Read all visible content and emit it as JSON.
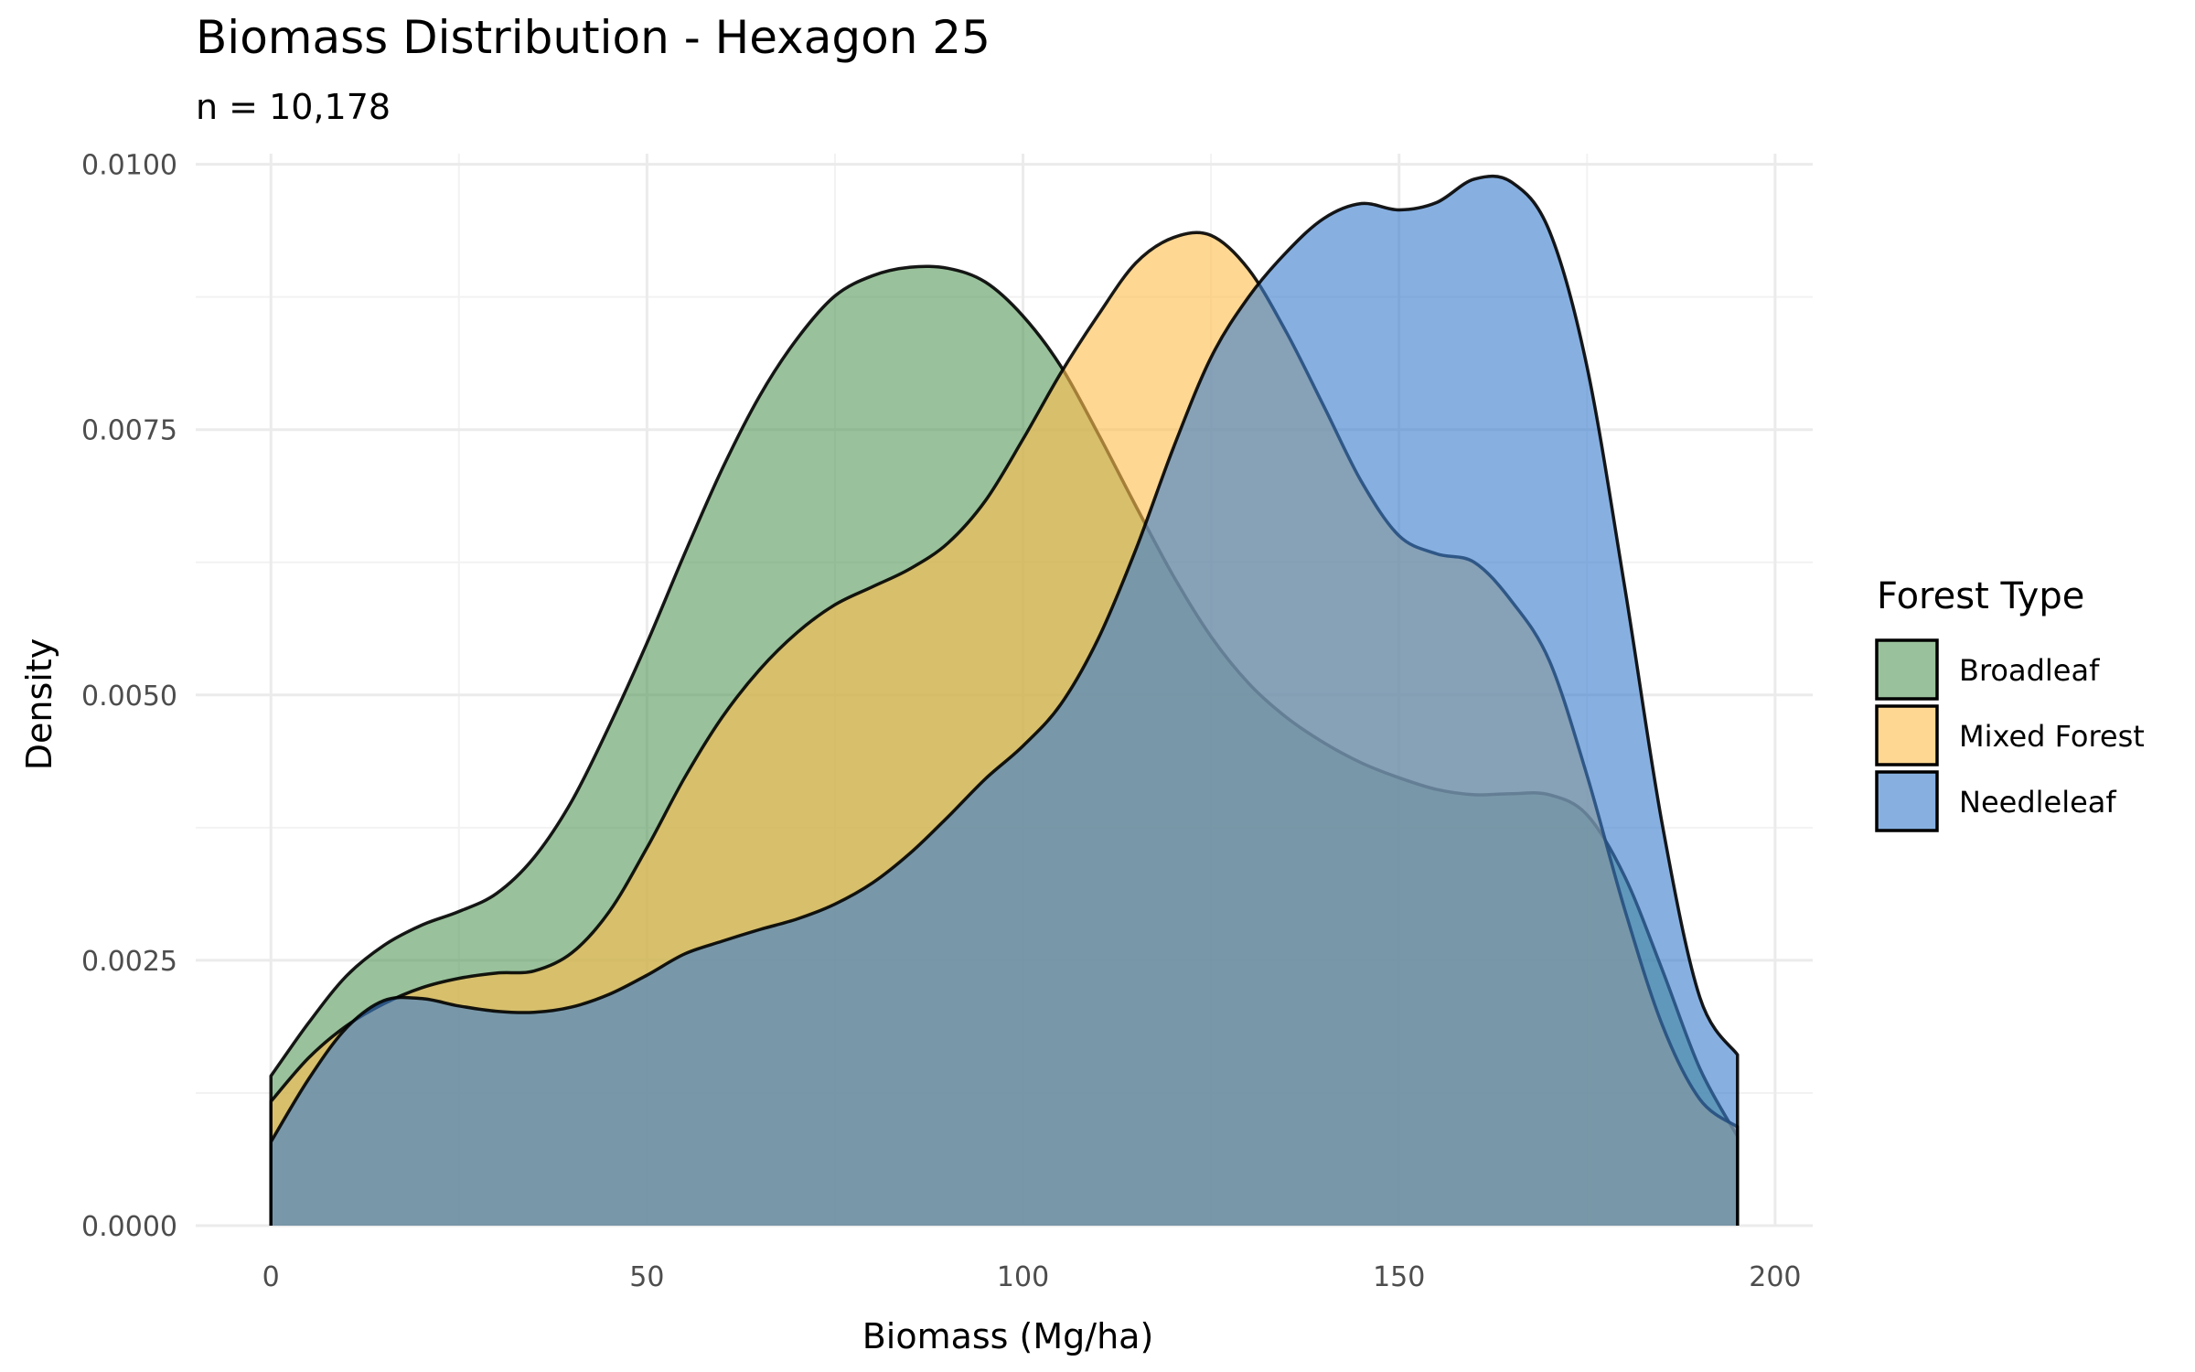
{
  "chart_data": {
    "type": "area",
    "title": "Biomass Distribution - Hexagon 25",
    "subtitle": "n = 10,178",
    "xlabel": "Biomass (Mg/ha)",
    "ylabel": "Density",
    "xlim": [
      -10,
      205
    ],
    "ylim": [
      0,
      0.0101
    ],
    "x_ticks": [
      0,
      50,
      100,
      150,
      200
    ],
    "x_tick_labels": [
      "0",
      "50",
      "100",
      "150",
      "200"
    ],
    "y_ticks": [
      0,
      0.0025,
      0.005,
      0.0075,
      0.01
    ],
    "y_tick_labels": [
      "0.0000",
      "0.0025",
      "0.0050",
      "0.0075",
      "0.0100"
    ],
    "grid": true,
    "legend": {
      "title": "Forest Type",
      "placement": "right"
    },
    "series": [
      {
        "name": "Broadleaf",
        "color": "#5b9b5e",
        "x": [
          0,
          5,
          10,
          15,
          20,
          25,
          30,
          35,
          40,
          45,
          50,
          55,
          60,
          65,
          70,
          75,
          80,
          85,
          90,
          95,
          100,
          105,
          110,
          115,
          120,
          125,
          130,
          135,
          140,
          145,
          150,
          155,
          160,
          165,
          170,
          175,
          180,
          185,
          190,
          195
        ],
        "values": [
          0.00141,
          0.00191,
          0.00235,
          0.00264,
          0.00283,
          0.00296,
          0.00313,
          0.00347,
          0.004,
          0.00471,
          0.00549,
          0.00633,
          0.00713,
          0.00782,
          0.00836,
          0.00876,
          0.00895,
          0.00903,
          0.00902,
          0.00889,
          0.00857,
          0.0081,
          0.00746,
          0.00678,
          0.00612,
          0.00555,
          0.00511,
          0.00479,
          0.00455,
          0.00436,
          0.00422,
          0.00411,
          0.00406,
          0.00407,
          0.00406,
          0.00387,
          0.00329,
          0.00241,
          0.00148,
          0.00084
        ]
      },
      {
        "name": "Mixed Forest",
        "color": "#fdbf4f",
        "x": [
          0,
          5,
          10,
          15,
          20,
          25,
          30,
          35,
          40,
          45,
          50,
          55,
          60,
          65,
          70,
          75,
          80,
          85,
          90,
          95,
          100,
          105,
          110,
          115,
          120,
          125,
          130,
          135,
          140,
          145,
          150,
          155,
          160,
          165,
          170,
          175,
          180,
          185,
          190,
          195
        ],
        "values": [
          0.00117,
          0.00158,
          0.00188,
          0.00209,
          0.00224,
          0.00233,
          0.00238,
          0.0024,
          0.00257,
          0.00296,
          0.00356,
          0.00422,
          0.00479,
          0.00524,
          0.00559,
          0.00585,
          0.00602,
          0.00619,
          0.00643,
          0.00683,
          0.00741,
          0.00803,
          0.00858,
          0.00907,
          0.00931,
          0.00933,
          0.00901,
          0.00842,
          0.00772,
          0.00701,
          0.0065,
          0.00633,
          0.00625,
          0.00588,
          0.00532,
          0.00424,
          0.00298,
          0.00189,
          0.00119,
          0.00093
        ]
      },
      {
        "name": "Needleleaf",
        "color": "#3d7fcf",
        "x": [
          0,
          5,
          10,
          15,
          20,
          25,
          30,
          35,
          40,
          45,
          50,
          55,
          60,
          65,
          70,
          75,
          80,
          85,
          90,
          95,
          100,
          105,
          110,
          115,
          120,
          125,
          130,
          135,
          140,
          145,
          150,
          155,
          160,
          165,
          170,
          175,
          180,
          185,
          190,
          195
        ],
        "values": [
          0.00079,
          0.00138,
          0.00186,
          0.00212,
          0.00214,
          0.00207,
          0.00202,
          0.00201,
          0.00206,
          0.00218,
          0.00236,
          0.00256,
          0.00268,
          0.00279,
          0.00289,
          0.00303,
          0.00323,
          0.00351,
          0.00385,
          0.00421,
          0.00452,
          0.00491,
          0.00553,
          0.00637,
          0.00733,
          0.00818,
          0.00875,
          0.00917,
          0.00949,
          0.00963,
          0.00957,
          0.00964,
          0.00986,
          0.00983,
          0.00937,
          0.00809,
          0.00602,
          0.00378,
          0.00215,
          0.00161
        ]
      }
    ]
  }
}
